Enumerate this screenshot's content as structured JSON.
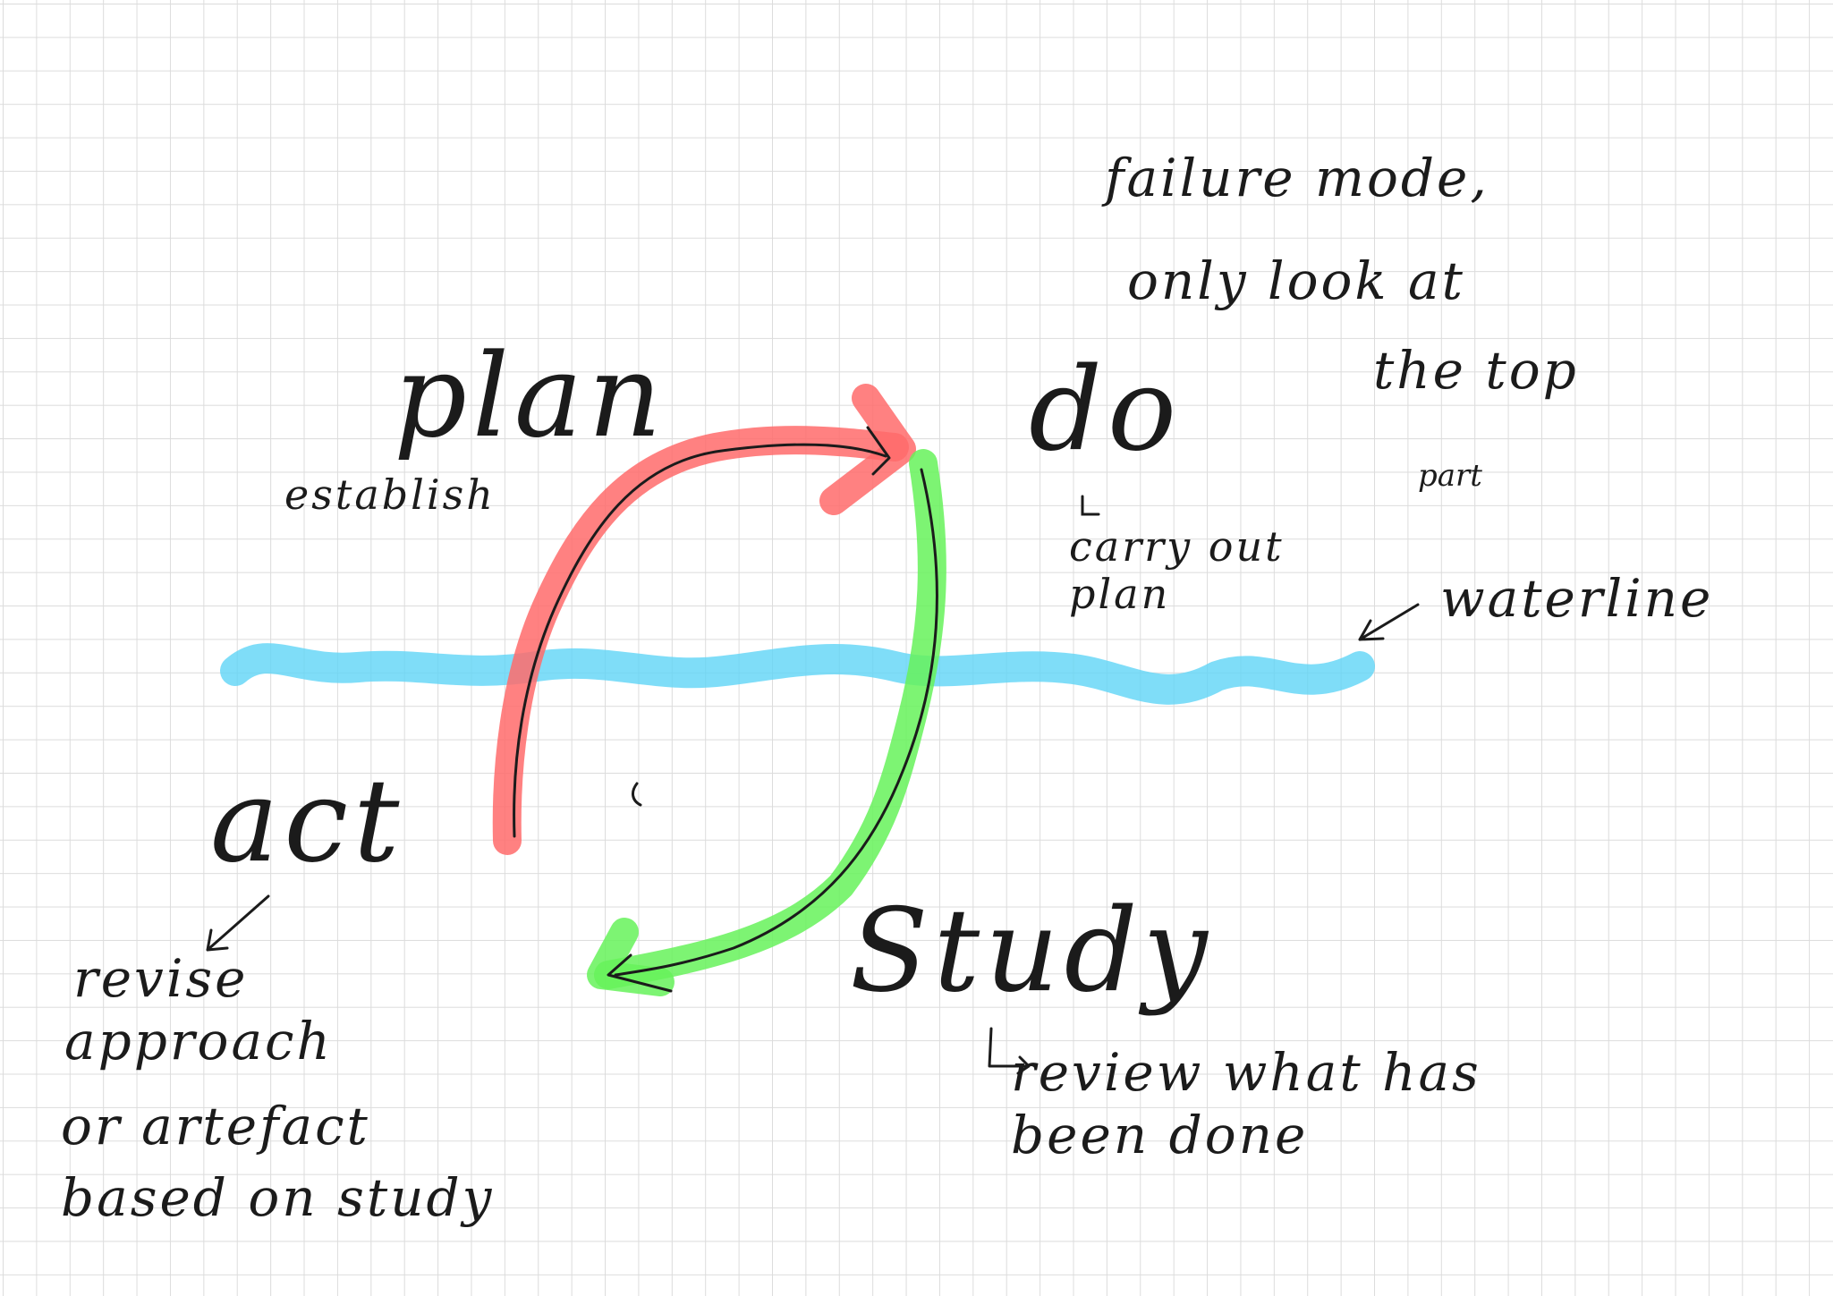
{
  "colors": {
    "background": "#ffffff",
    "grid": "#dcdcdc",
    "ink": "#1b1b1b",
    "waterline": "#5fd4f6",
    "plan_to_do_arrow": "#ff6b6b",
    "do_to_study_arrow": "#66f25a"
  },
  "cycle": {
    "plan": {
      "title": "plan",
      "detail": "establish"
    },
    "do": {
      "title": "do",
      "detail": "carry out plan"
    },
    "study": {
      "title": "Study",
      "detail": "review what has been done"
    },
    "act": {
      "title": "act",
      "detail_lines": [
        "revise",
        "approach",
        "or artefact",
        "based on study"
      ]
    }
  },
  "waterline": {
    "label": "waterline"
  },
  "failure_note": {
    "lines": [
      "failure mode,",
      "only look at",
      "the top",
      "part"
    ]
  }
}
